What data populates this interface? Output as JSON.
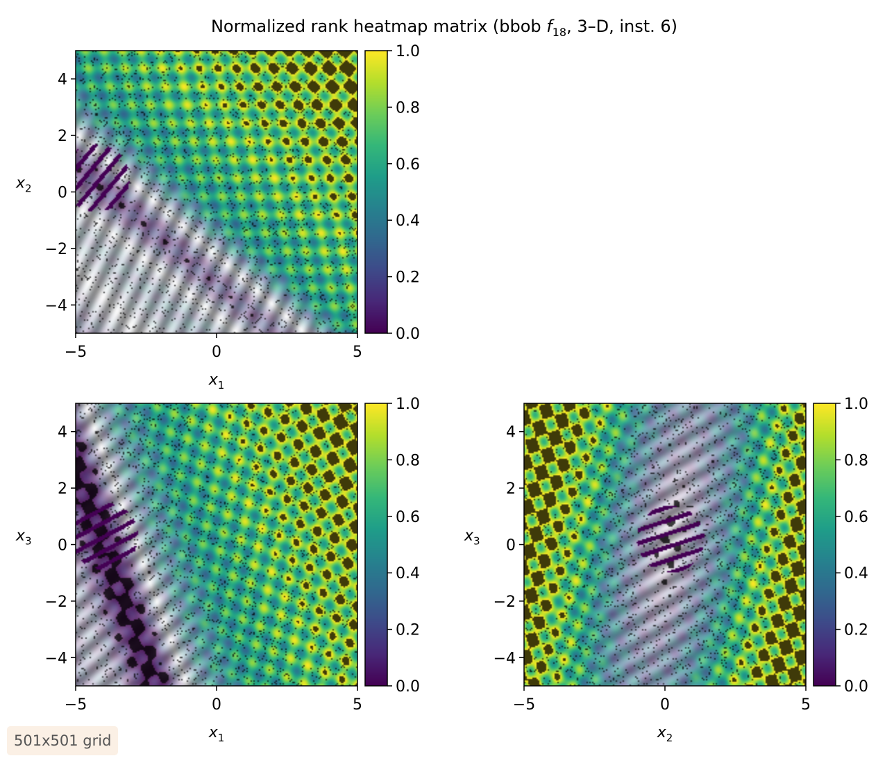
{
  "figure": {
    "title_main": "Normalized rank heatmap matrix (bbob ",
    "title_f": "f",
    "title_sub": "18",
    "title_rest": ", 3–D, inst. 6)",
    "grid_badge": "501x501 grid",
    "colormap": "viridis"
  },
  "chart_data": [
    {
      "type": "heatmap",
      "panel": "x1-x2",
      "xlabel_base": "x",
      "xlabel_sub": "1",
      "ylabel_base": "x",
      "ylabel_sub": "2",
      "xlim": [
        -5,
        5
      ],
      "ylim": [
        -5,
        5
      ],
      "xticks": [
        -5,
        0,
        5
      ],
      "xtick_labels": [
        "−5",
        "0",
        "5"
      ],
      "yticks": [
        -4,
        -2,
        0,
        2,
        4
      ],
      "ytick_labels": [
        "−4",
        "−2",
        "0",
        "2",
        "4"
      ],
      "colorbar": {
        "range": [
          0,
          1
        ],
        "ticks": [
          0,
          0.2,
          0.4,
          0.6,
          0.8,
          1.0
        ],
        "tick_labels": [
          "0.0",
          "0.2",
          "0.4",
          "0.6",
          "0.8",
          "1.0"
        ]
      },
      "optimum": [
        -4.3,
        0.5
      ],
      "valley_angle_deg": -40,
      "wave_angle_deg": -40,
      "gradient_dir": [
        1,
        1
      ]
    },
    {
      "type": "heatmap",
      "panel": "x1-x3",
      "xlabel_base": "x",
      "xlabel_sub": "1",
      "ylabel_base": "x",
      "ylabel_sub": "3",
      "xlim": [
        -5,
        5
      ],
      "ylim": [
        -5,
        5
      ],
      "xticks": [
        -5,
        0,
        5
      ],
      "xtick_labels": [
        "−5",
        "0",
        "5"
      ],
      "yticks": [
        -4,
        -2,
        0,
        2,
        4
      ],
      "ytick_labels": [
        "−4",
        "−2",
        "0",
        "2",
        "4"
      ],
      "colorbar": {
        "range": [
          0,
          1
        ],
        "ticks": [
          0,
          0.2,
          0.4,
          0.6,
          0.8,
          1.0
        ],
        "tick_labels": [
          "0.0",
          "0.2",
          "0.4",
          "0.6",
          "0.8",
          "1.0"
        ]
      },
      "optimum": [
        -4.0,
        0.3
      ],
      "valley_angle_deg": -70,
      "wave_angle_deg": -62,
      "gradient_dir": [
        1,
        0.35
      ]
    },
    {
      "type": "heatmap",
      "panel": "x2-x3",
      "xlabel_base": "x",
      "xlabel_sub": "2",
      "ylabel_base": "x",
      "ylabel_sub": "3",
      "xlim": [
        -5,
        5
      ],
      "ylim": [
        -5,
        5
      ],
      "xticks": [
        -5,
        0,
        5
      ],
      "xtick_labels": [
        "−5",
        "0",
        "5"
      ],
      "yticks": [
        -4,
        -2,
        0,
        2,
        4
      ],
      "ytick_labels": [
        "−4",
        "−2",
        "0",
        "2",
        "4"
      ],
      "colorbar": {
        "range": [
          0,
          1
        ],
        "ticks": [
          0,
          0.2,
          0.4,
          0.6,
          0.8,
          1.0
        ],
        "tick_labels": [
          "0.0",
          "0.2",
          "0.4",
          "0.6",
          "0.8",
          "1.0"
        ]
      },
      "optimum": [
        0.2,
        0.2
      ],
      "valley_angle_deg": 80,
      "wave_angle_deg": -72,
      "gradient_dir": [
        0,
        0
      ],
      "bowl": true
    }
  ]
}
